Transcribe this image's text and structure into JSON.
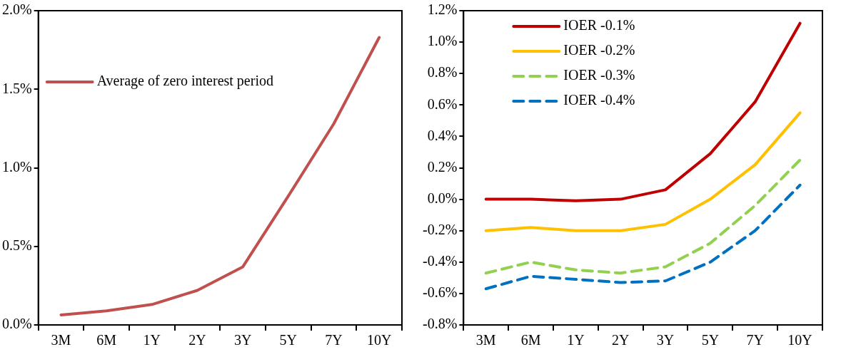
{
  "chart_data": [
    {
      "type": "line",
      "categories": [
        "3M",
        "6M",
        "1Y",
        "2Y",
        "3Y",
        "5Y",
        "7Y",
        "10Y"
      ],
      "ylim": [
        0,
        2
      ],
      "yticks": [
        {
          "value": 0,
          "label": "0.0%"
        },
        {
          "value": 0.5,
          "label": "0.5%"
        },
        {
          "value": 1,
          "label": "1.0%"
        },
        {
          "value": 1.5,
          "label": "1.5%"
        },
        {
          "value": 2,
          "label": "2.0%"
        }
      ],
      "grid": false,
      "legend": "top left",
      "marker": "none",
      "series": [
        {
          "name": "Average of zero interest period",
          "color": "#c0504d",
          "line_style": "solid",
          "values": [
            0.064,
            0.09,
            0.13,
            0.22,
            0.37,
            0.82,
            1.28,
            1.83
          ]
        }
      ]
    },
    {
      "type": "line",
      "categories": [
        "3M",
        "6M",
        "1Y",
        "2Y",
        "3Y",
        "5Y",
        "7Y",
        "10Y"
      ],
      "ylim": [
        -0.8,
        1.2
      ],
      "yticks": [
        {
          "value": -0.8,
          "label": "-0.8%"
        },
        {
          "value": -0.6,
          "label": "-0.6%"
        },
        {
          "value": -0.4,
          "label": "-0.4%"
        },
        {
          "value": -0.2,
          "label": "-0.2%"
        },
        {
          "value": 0,
          "label": "0.0%"
        },
        {
          "value": 0.2,
          "label": "0.2%"
        },
        {
          "value": 0.4,
          "label": "0.4%"
        },
        {
          "value": 0.6,
          "label": "0.6%"
        },
        {
          "value": 0.8,
          "label": "0.8%"
        },
        {
          "value": 1,
          "label": "1.0%"
        },
        {
          "value": 1.2,
          "label": "1.2%"
        }
      ],
      "grid": false,
      "legend": "top left",
      "marker": "none",
      "series": [
        {
          "name": "IOER -0.1%",
          "color": "#c00000",
          "line_style": "solid",
          "values": [
            0.0,
            0.0,
            -0.01,
            0.0,
            0.06,
            0.29,
            0.62,
            1.12
          ]
        },
        {
          "name": "IOER -0.2%",
          "color": "#ffc000",
          "line_style": "solid",
          "values": [
            -0.2,
            -0.18,
            -0.2,
            -0.2,
            -0.16,
            0.0,
            0.22,
            0.55
          ]
        },
        {
          "name": "IOER -0.3%",
          "color": "#92d050",
          "line_style": "dashed",
          "values": [
            -0.47,
            -0.4,
            -0.45,
            -0.47,
            -0.43,
            -0.28,
            -0.04,
            0.25
          ]
        },
        {
          "name": "IOER -0.4%",
          "color": "#0070c0",
          "line_style": "dashed",
          "values": [
            -0.57,
            -0.49,
            -0.51,
            -0.53,
            -0.52,
            -0.4,
            -0.2,
            0.09
          ]
        }
      ]
    }
  ]
}
